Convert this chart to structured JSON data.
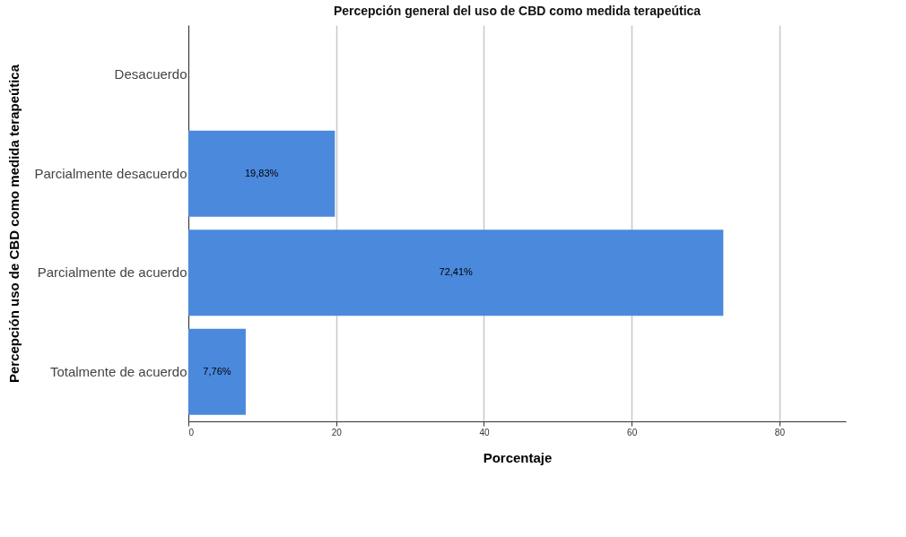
{
  "chart_data": {
    "type": "bar",
    "orientation": "horizontal",
    "title": "Percepción general del uso de CBD como medida terapeútica",
    "xlabel": "Porcentaje",
    "ylabel": "Percepción uso de CBD como medida terapeútica",
    "categories": [
      "Desacuerdo",
      "Parcialmente desacuerdo",
      "Parcialmente de acuerdo",
      "Totalmente de acuerdo"
    ],
    "values": [
      null,
      19.83,
      72.41,
      7.76
    ],
    "value_labels": [
      null,
      "19,83%",
      "72,41%",
      "7,76%"
    ],
    "color": "#4a89dc",
    "xlim": [
      0,
      89
    ],
    "xticks": [
      0,
      20,
      40,
      60,
      80
    ],
    "grid": "x"
  }
}
